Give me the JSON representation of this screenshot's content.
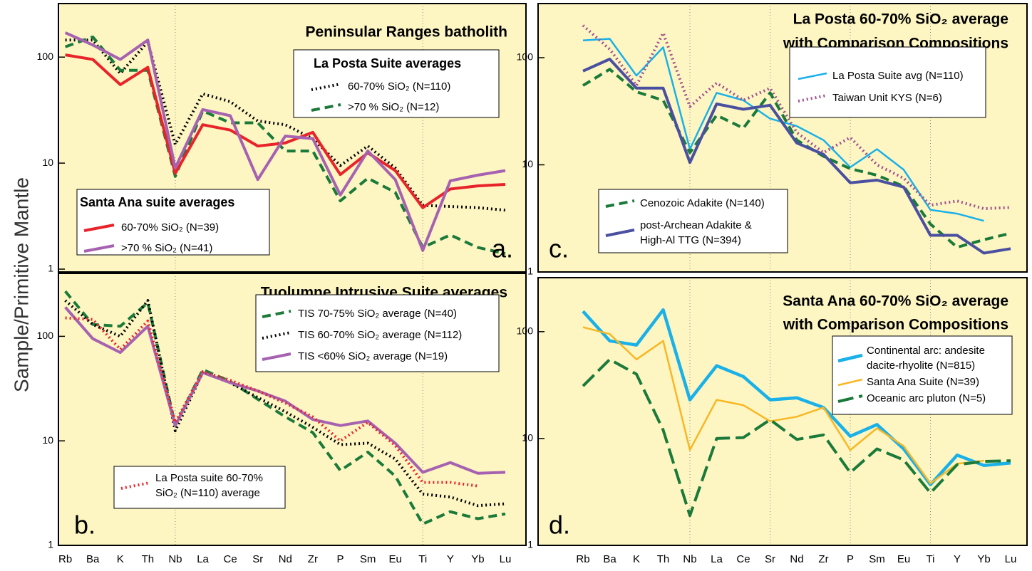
{
  "ylabel": "Sample/Primitive Mantle",
  "chart_data": [
    {
      "type": "line",
      "log_y": true,
      "title": "Peninsular Ranges batholith",
      "panel_label": "a.",
      "ylim": [
        0.94,
        320
      ],
      "yticks": [
        1,
        10,
        100
      ],
      "grid_categories": [
        "Nb",
        "Ti"
      ],
      "series_groups": [
        {
          "title": "La Posta Suite averages",
          "series": [
            {
              "name": "60-70% SiO₂ (N=110)",
              "color": "#000000",
              "style": "dotted",
              "width": 4,
              "values": [
                145,
                145,
                70,
                140,
                15,
                45,
                38,
                25,
                23,
                17,
                9.5,
                14.5,
                9,
                4,
                3.9,
                3.8,
                3.6
              ]
            },
            {
              "name": ">70 % SiO₂ (N=12)",
              "color": "#1b7a3a",
              "style": "dashed",
              "width": 4,
              "values": [
                125,
                155,
                75,
                75,
                7.5,
                31,
                24,
                24,
                13,
                13,
                4.4,
                7.2,
                5.3,
                1.6,
                2.1,
                1.6,
                1.4
              ]
            }
          ]
        },
        {
          "title": "Santa Ana suite averages",
          "series": [
            {
              "name": "60-70% SiO₂ (N=39)",
              "color": "#e8232a",
              "style": "solid",
              "width": 4,
              "values": [
                105,
                95,
                55,
                80,
                8,
                23,
                20.5,
                14.5,
                15.5,
                19.5,
                7.8,
                12.5,
                8.5,
                3.8,
                5.7,
                6.1,
                6.3
              ]
            },
            {
              "name": ">70 % SiO₂ (N=41)",
              "color": "#a662b0",
              "style": "solid",
              "width": 4,
              "values": [
                170,
                130,
                95,
                145,
                9,
                32,
                28,
                7,
                18,
                17,
                5,
                13,
                7,
                1.5,
                6.8,
                7.7,
                8.5
              ]
            }
          ]
        }
      ]
    },
    {
      "type": "line",
      "log_y": true,
      "title": "Tuolumne Intrusive Suite averages",
      "panel_label": "b.",
      "categories": [
        "Rb",
        "Ba",
        "K",
        "Th",
        "Nb",
        "La",
        "Ce",
        "Sr",
        "Nd",
        "Zr",
        "P",
        "Sm",
        "Eu",
        "Ti",
        "Y",
        "Yb",
        "Lu"
      ],
      "ylim": [
        1,
        400
      ],
      "yticks": [
        1,
        10,
        100
      ],
      "grid_categories": [
        "Nb",
        "Ti"
      ],
      "series_groups": [
        {
          "series": [
            {
              "name": "TIS 70-75% SiO₂ average (N=40)",
              "color": "#1b7a3a",
              "style": "dashed",
              "width": 4,
              "values": [
                270,
                130,
                125,
                210,
                14,
                48,
                37,
                25,
                17,
                12,
                5.2,
                7.8,
                4.6,
                1.6,
                2.1,
                1.8,
                2.0
              ]
            },
            {
              "name": "TIS 60-70% SiO₂ average (N=112)",
              "color": "#000000",
              "style": "dotted",
              "width": 4,
              "values": [
                220,
                130,
                100,
                220,
                12.5,
                45,
                36,
                26,
                19,
                13.5,
                9.2,
                9.5,
                6.7,
                3.1,
                2.9,
                2.4,
                2.5
              ]
            },
            {
              "name": "TIS <60% SiO₂ average (N=19)",
              "color": "#a662b0",
              "style": "solid",
              "width": 4,
              "values": [
                190,
                95,
                70,
                125,
                14,
                45,
                36,
                30,
                24,
                16,
                14,
                15.5,
                9.5,
                5,
                6.2,
                4.9,
                5
              ]
            }
          ]
        },
        {
          "series": [
            {
              "name": [
                "La Posta  suite 60-70%",
                "SiO₂ (N=110) average"
              ],
              "color": "#e8232a",
              "style": "dotted",
              "width": 4,
              "values": [
                150,
                145,
                75,
                140,
                15,
                46,
                38,
                30,
                23,
                17,
                10,
                15,
                9,
                4,
                4,
                3.7,
                null
              ]
            }
          ]
        }
      ]
    },
    {
      "type": "line",
      "log_y": true,
      "title": [
        "La Posta  60-70% SiO₂ average",
        "with Comparison Compositions"
      ],
      "panel_label": "c.",
      "ylim": [
        1,
        320
      ],
      "yticks": [
        1,
        10,
        100
      ],
      "grid_categories": [
        "Nb",
        "Sr",
        "P",
        "Ti"
      ],
      "series_groups": [
        {
          "series": [
            {
              "name": "La Posta Suite avg (N=110)",
              "color": "#1ab0e8",
              "style": "solid",
              "width": 2.5,
              "values": [
                145,
                150,
                68,
                125,
                14,
                47,
                40,
                27,
                23,
                17,
                9.5,
                14,
                9,
                3.8,
                3.5,
                3.0,
                null
              ]
            },
            {
              "name": "Taiwan Unit KYS (N=6)",
              "color": "#a0508f",
              "style": "dotted",
              "width": 4,
              "values": [
                200,
                120,
                55,
                170,
                35,
                58,
                40,
                52,
                20,
                13,
                18,
                10,
                7.5,
                4.2,
                4.6,
                3.9,
                4.0
              ]
            }
          ]
        },
        {
          "series": [
            {
              "name": "Cenozoic Adakite (N=140)",
              "color": "#1b7a3a",
              "style": "dashed",
              "width": 4,
              "values": [
                55,
                78,
                48,
                40,
                13,
                29,
                22,
                47,
                17,
                12,
                9.2,
                8,
                6.3,
                2.8,
                1.7,
                2.0,
                2.3
              ]
            },
            {
              "name": [
                "post-Archean Adakite &",
                "High-Al TTG (N=394)"
              ],
              "color": "#4a4fa0",
              "style": "solid",
              "width": 4,
              "values": [
                75,
                97,
                52,
                52,
                10.5,
                37,
                33,
                36,
                16,
                12.5,
                6.8,
                7.2,
                6.2,
                2.2,
                2.2,
                1.5,
                1.65
              ]
            }
          ]
        }
      ]
    },
    {
      "type": "line",
      "log_y": true,
      "title": [
        "Santa Ana  60-70% SiO₂ average",
        "with Comparison Compositions"
      ],
      "panel_label": "d.",
      "categories": [
        "Rb",
        "Ba",
        "K",
        "Th",
        "Nb",
        "La",
        "Ce",
        "Sr",
        "Nd",
        "Zr",
        "P",
        "Sm",
        "Eu",
        "Ti",
        "Y",
        "Yb",
        "Lu"
      ],
      "ylim": [
        1,
        320
      ],
      "yticks": [
        1,
        10,
        100
      ],
      "grid_categories": [
        "Nb",
        "Sr",
        "P",
        "Ti"
      ],
      "series_groups": [
        {
          "series": [
            {
              "name": [
                "Continental arc: andesite",
                "dacite-rhyolite (N=815)"
              ],
              "color": "#1ab0e8",
              "style": "solid",
              "width": 4.5,
              "values": [
                155,
                82,
                75,
                160,
                23,
                48,
                38,
                23,
                24,
                19.5,
                10.5,
                13.5,
                8,
                3.7,
                7,
                5.6,
                5.9
              ]
            },
            {
              "name": "Santa Ana Suite (N=39)",
              "color": "#f8b724",
              "style": "solid",
              "width": 2.5,
              "values": [
                110,
                95,
                55,
                82,
                7.8,
                23,
                20.5,
                14.5,
                16,
                19.5,
                7.8,
                12.5,
                8.5,
                3.8,
                5.8,
                6.2,
                null
              ]
            },
            {
              "name": "Oceanic arc pluton (N=5)",
              "color": "#1b7a3a",
              "style": "longdash",
              "width": 4,
              "values": [
                31,
                55,
                40,
                12,
                1.9,
                10,
                10.2,
                15,
                9.8,
                10.8,
                4.8,
                8,
                6.3,
                3.1,
                5.7,
                6.1,
                6.2
              ]
            }
          ]
        }
      ]
    }
  ]
}
